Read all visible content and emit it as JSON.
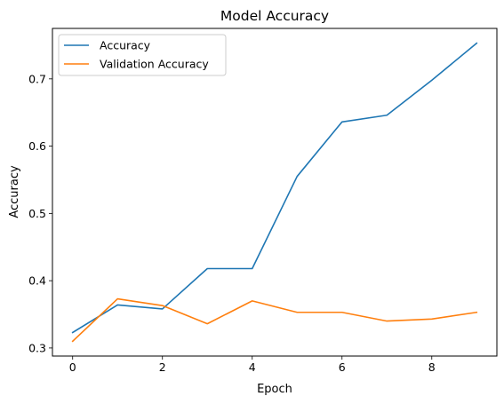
{
  "chart_data": {
    "type": "line",
    "title": "Model Accuracy",
    "xlabel": "Epoch",
    "ylabel": "Accuracy",
    "x": [
      0,
      1,
      2,
      3,
      4,
      5,
      6,
      7,
      8,
      9
    ],
    "xlim": [
      -0.45,
      9.45
    ],
    "ylim": [
      0.288,
      0.775
    ],
    "xticks": [
      0,
      2,
      4,
      6,
      8
    ],
    "yticks": [
      0.3,
      0.4,
      0.5,
      0.6,
      0.7
    ],
    "grid": false,
    "legend_position": "top-left",
    "series": [
      {
        "name": "Accuracy",
        "color": "#1f77b4",
        "values": [
          0.323,
          0.364,
          0.358,
          0.418,
          0.418,
          0.555,
          0.636,
          0.646,
          0.698,
          0.753
        ]
      },
      {
        "name": "Validation Accuracy",
        "color": "#ff7f0e",
        "values": [
          0.31,
          0.373,
          0.363,
          0.336,
          0.37,
          0.353,
          0.353,
          0.34,
          0.343,
          0.353
        ]
      }
    ]
  }
}
